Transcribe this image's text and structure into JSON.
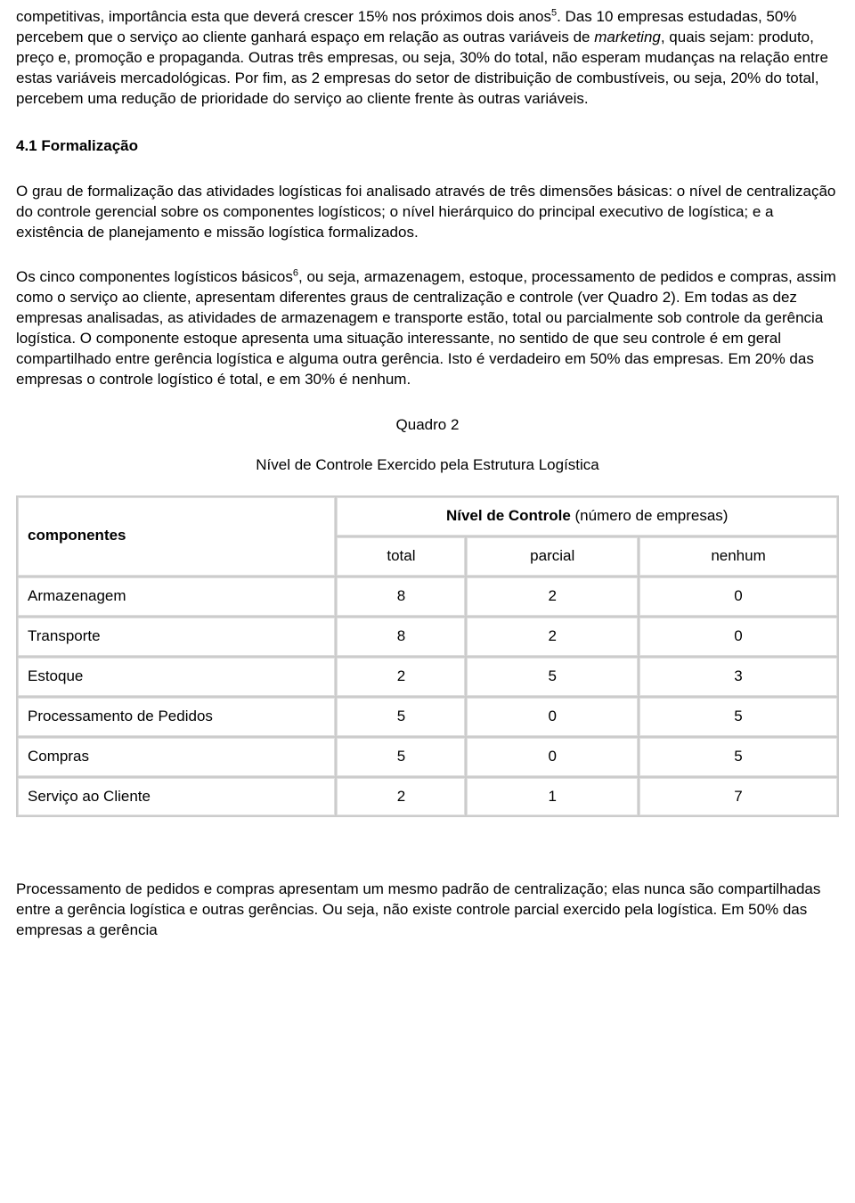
{
  "para_top_pre": "competitivas, importância esta que deverá crescer 15% nos próximos dois anos",
  "footnote5": "5",
  "para_top_mid": ". Das 10 empresas estudadas, 50% percebem que o serviço ao cliente ganhará espaço em relação as outras variáveis de ",
  "marketing_word": "marketing",
  "para_top_post": ", quais sejam: produto, preço e, promoção e propaganda. Outras três empresas, ou seja, 30% do total, não esperam mudanças na relação entre estas variáveis mercadológicas. Por fim, as 2 empresas do setor de distribuição de combustíveis, ou seja, 20% do total, percebem uma redução de prioridade do serviço ao cliente frente às outras variáveis.",
  "heading_4_1": "4.1 Formalização",
  "para_2": "O grau de formalização das atividades logísticas foi analisado através de três dimensões básicas: o nível de centralização do controle gerencial sobre os componentes logísticos; o nível hierárquico do principal executivo de logística; e a existência de planejamento e missão logística formalizados.",
  "para_3_pre": "Os cinco componentes logísticos básicos",
  "footnote6": "6",
  "para_3_post": ", ou seja, armazenagem, estoque, processamento de pedidos e compras, assim como o serviço ao cliente, apresentam diferentes graus de centralização e controle (ver Quadro 2). Em todas as dez empresas analisadas, as atividades de armazenagem e transporte estão, total ou parcialmente sob controle da gerência logística. O componente estoque apresenta uma situação interessante, no sentido de que seu controle é em geral compartilhado entre gerência logística e alguma outra gerência. Isto é verdadeiro em 50% das empresas. Em 20% das empresas o controle logístico é total, e em 30% é nenhum.",
  "table": {
    "title_line1": "Quadro 2",
    "title_line2": "Nível de Controle Exercido pela Estrutura Logística",
    "header_left": "componentes",
    "header_group_bold": "Nível de Controle",
    "header_group_rest": " (número de empresas)",
    "subheaders": [
      "total",
      "parcial",
      "nenhum"
    ],
    "rows": [
      {
        "label": "Armazenagem",
        "vals": [
          "8",
          "2",
          "0"
        ]
      },
      {
        "label": "Transporte",
        "vals": [
          "8",
          "2",
          "0"
        ]
      },
      {
        "label": "Estoque",
        "vals": [
          "2",
          "5",
          "3"
        ]
      },
      {
        "label": "Processamento de Pedidos",
        "vals": [
          "5",
          "0",
          "5"
        ]
      },
      {
        "label": "Compras",
        "vals": [
          "5",
          "0",
          "5"
        ]
      },
      {
        "label": "Serviço ao Cliente",
        "vals": [
          "2",
          "1",
          "7"
        ]
      }
    ]
  },
  "para_bottom": "Processamento de pedidos e compras apresentam um mesmo padrão de centralização; elas nunca são compartilhadas entre a gerência logística e outras gerências. Ou seja, não existe controle parcial exercido pela logística. Em 50% das empresas a gerência"
}
